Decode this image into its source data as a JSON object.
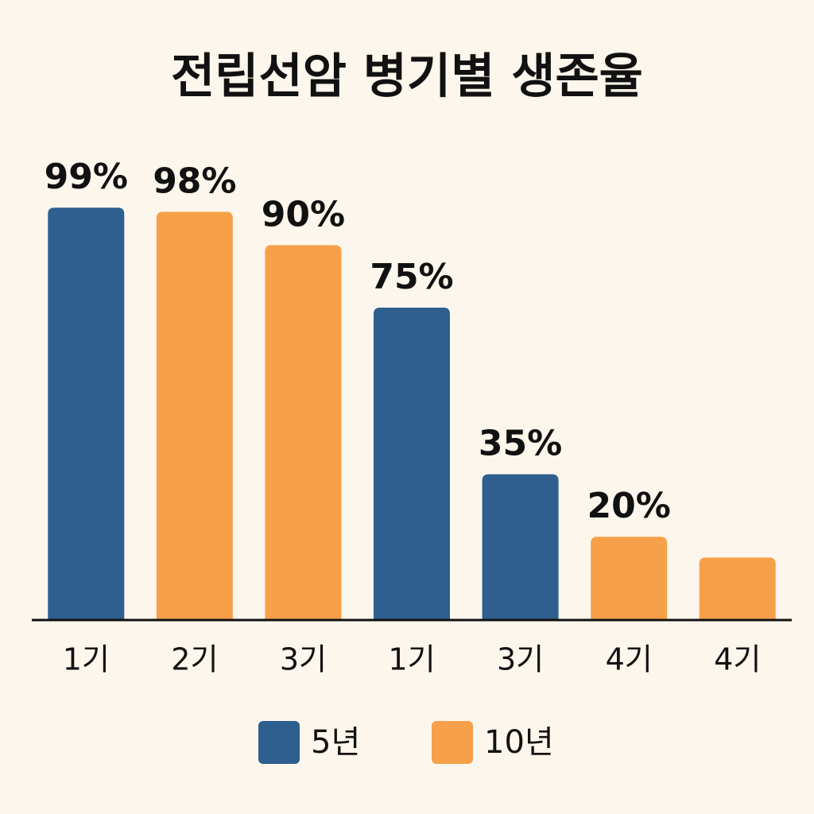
{
  "chart_data": {
    "type": "bar",
    "title": "전립선암 병기별 생존율",
    "categories": [
      "1기",
      "2기",
      "3기",
      "1기",
      "3기",
      "4기",
      "4기"
    ],
    "series": [
      {
        "name": "5년",
        "color": "#2e5f8e",
        "values": [
          99,
          null,
          null,
          75,
          35,
          null,
          null
        ],
        "value_labels": [
          "99%",
          null,
          null,
          "75%",
          "35%",
          null,
          null
        ]
      },
      {
        "name": "10년",
        "color": "#f7a04a",
        "values": [
          null,
          98,
          90,
          null,
          null,
          20,
          15
        ],
        "value_labels": [
          null,
          "98%",
          "90%",
          null,
          null,
          "20%",
          null
        ]
      }
    ],
    "ylim": [
      0,
      100
    ]
  }
}
